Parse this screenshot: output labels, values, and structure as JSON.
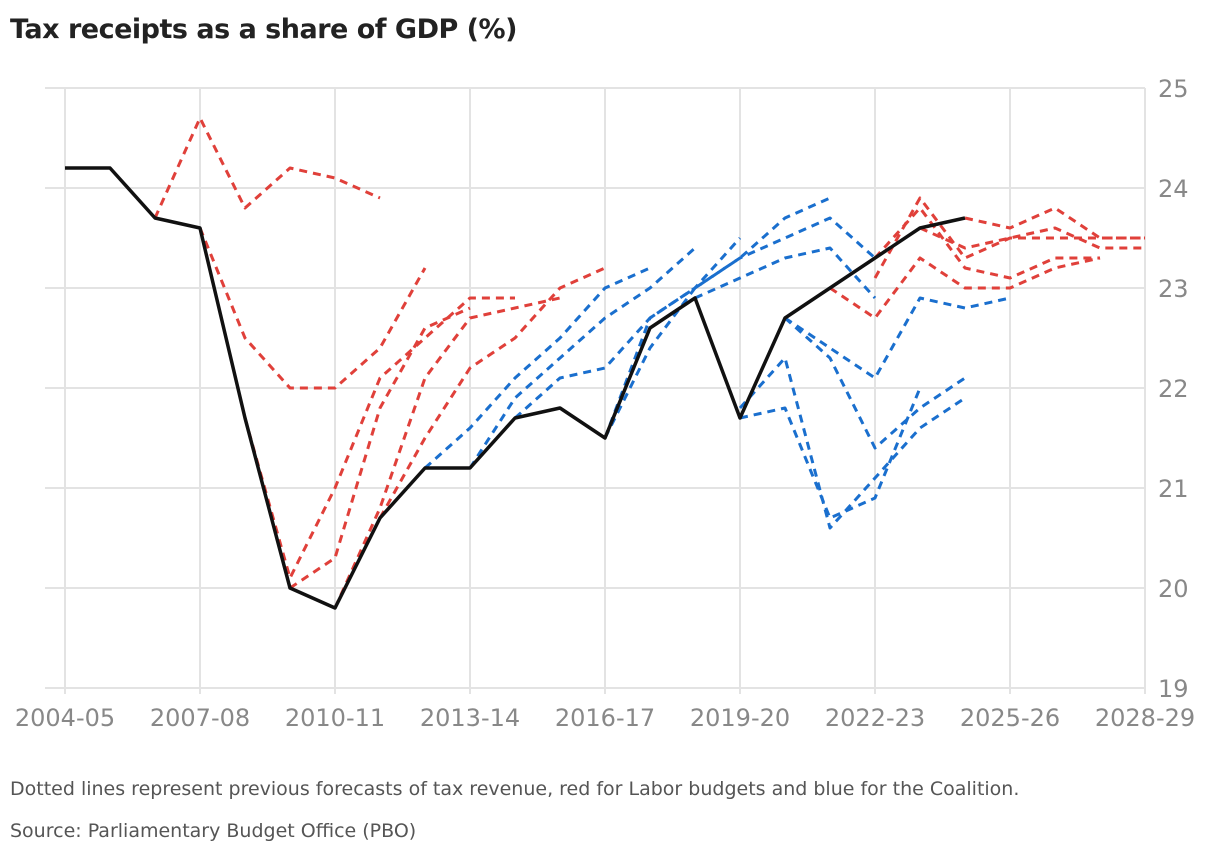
{
  "chart_data": {
    "type": "line",
    "title": "Tax receipts as a share of GDP (%)",
    "xlabel": "",
    "ylabel": "",
    "categories": [
      "2004-05",
      "2005-06",
      "2006-07",
      "2007-08",
      "2008-09",
      "2009-10",
      "2010-11",
      "2011-12",
      "2012-13",
      "2013-14",
      "2014-15",
      "2015-16",
      "2016-17",
      "2017-18",
      "2018-19",
      "2019-20",
      "2020-21",
      "2021-22",
      "2022-23",
      "2023-24",
      "2024-25",
      "2025-26",
      "2026-27",
      "2027-28",
      "2028-29"
    ],
    "x_tick_labels": [
      "2004-05",
      "2007-08",
      "2010-11",
      "2013-14",
      "2016-17",
      "2019-20",
      "2022-23",
      "2025-26",
      "2028-29"
    ],
    "ylim": [
      19,
      25
    ],
    "y_ticks": [
      19,
      20,
      21,
      22,
      23,
      24,
      25
    ],
    "y_axis_side": "right",
    "grid": true,
    "colors": {
      "actual": "#111111",
      "labor": "#e0403a",
      "coalition": "#1a6fce",
      "grid": "#e3e3e3"
    },
    "actual": {
      "start": "2004-05",
      "values": [
        24.2,
        24.2,
        23.7,
        23.6,
        21.7,
        20.0,
        19.8,
        20.7,
        21.2,
        21.2,
        21.7,
        21.8,
        21.5,
        22.6,
        22.9,
        21.7,
        22.7,
        23.0,
        23.3,
        23.6,
        23.7
      ]
    },
    "forecasts": [
      {
        "party": "labor",
        "start": "2006-07",
        "values": [
          23.7,
          24.7,
          23.8,
          24.2,
          24.1,
          23.9
        ]
      },
      {
        "party": "labor",
        "start": "2007-08",
        "values": [
          23.6,
          22.5,
          22.0,
          22.0,
          22.4,
          23.2
        ]
      },
      {
        "party": "labor",
        "start": "2008-09",
        "values": [
          21.7,
          20.1,
          21.0,
          22.1,
          22.5,
          22.9,
          22.9
        ]
      },
      {
        "party": "labor",
        "start": "2009-10",
        "values": [
          20.0,
          20.3,
          21.8,
          22.6,
          22.8
        ]
      },
      {
        "party": "labor",
        "start": "2010-11",
        "values": [
          19.8,
          20.8,
          22.1,
          22.7,
          22.8,
          22.9
        ]
      },
      {
        "party": "labor",
        "start": "2011-12",
        "values": [
          20.7,
          21.5,
          22.2,
          22.5,
          23.0,
          23.2
        ]
      },
      {
        "party": "coalition",
        "start": "2012-13",
        "values": [
          21.2,
          21.6,
          22.1,
          22.5,
          23.0,
          23.2
        ]
      },
      {
        "party": "coalition",
        "start": "2013-14",
        "values": [
          21.2,
          21.9,
          22.3,
          22.7,
          23.0,
          23.4
        ]
      },
      {
        "party": "coalition",
        "start": "2014-15",
        "values": [
          21.7,
          22.1,
          22.2,
          22.7,
          23.0,
          23.5
        ]
      },
      {
        "party": "coalition",
        "start": "2016-17",
        "values": [
          21.5,
          22.7,
          23.0,
          23.3,
          23.7,
          23.9
        ]
      },
      {
        "party": "coalition",
        "start": "2016-17",
        "values": [
          21.5,
          22.4,
          23.0,
          23.3,
          23.5,
          23.7,
          23.3
        ]
      },
      {
        "party": "coalition",
        "start": "2018-19",
        "values": [
          22.9,
          23.1,
          23.3,
          23.4,
          22.9
        ]
      },
      {
        "party": "coalition",
        "start": "2019-20",
        "values": [
          21.7,
          21.8,
          20.7,
          20.9,
          22.0
        ]
      },
      {
        "party": "coalition",
        "start": "2019-20",
        "values": [
          21.8,
          22.3,
          20.6,
          21.1,
          21.6,
          21.9
        ]
      },
      {
        "party": "coalition",
        "start": "2020-21",
        "values": [
          22.7,
          22.3,
          21.4,
          21.8,
          22.1
        ]
      },
      {
        "party": "coalition",
        "start": "2020-21",
        "values": [
          22.7,
          22.4,
          22.1,
          22.9,
          22.8,
          22.9
        ]
      },
      {
        "party": "labor",
        "start": "2021-22",
        "values": [
          23.0,
          22.7,
          23.3,
          23.0,
          23.0,
          23.2,
          23.3
        ]
      },
      {
        "party": "labor",
        "start": "2022-23",
        "values": [
          23.1,
          23.9,
          23.3,
          23.5,
          23.5,
          23.5,
          23.5
        ]
      },
      {
        "party": "labor",
        "start": "2022-23",
        "values": [
          23.3,
          23.8,
          23.2,
          23.1,
          23.3,
          23.3
        ]
      },
      {
        "party": "labor",
        "start": "2023-24",
        "values": [
          23.6,
          23.4,
          23.5,
          23.6,
          23.4,
          23.4
        ]
      },
      {
        "party": "labor",
        "start": "2024-25",
        "values": [
          23.7,
          23.6,
          23.8,
          23.5,
          23.5
        ]
      }
    ]
  },
  "notes": {
    "description": "Dotted lines represent previous forecasts of tax revenue, red for Labor budgets and blue for the Coalition.",
    "source": "Source: Parliamentary Budget Office (PBO)"
  }
}
